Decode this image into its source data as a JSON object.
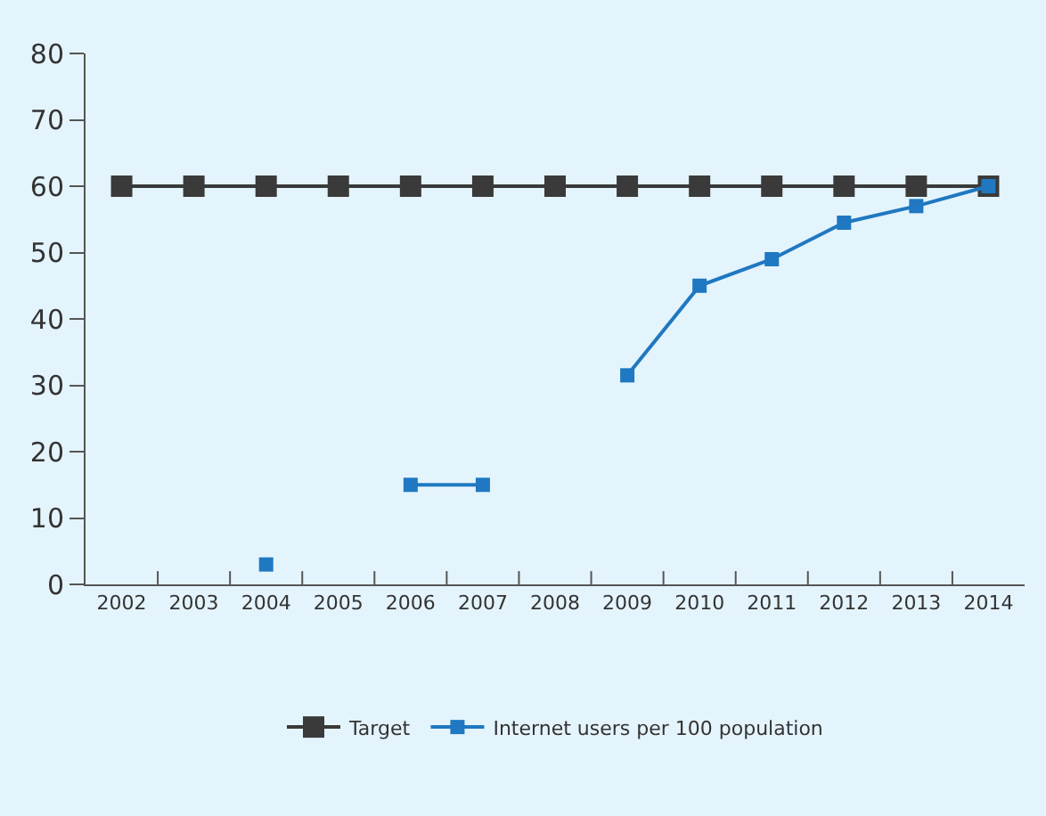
{
  "chart_data": {
    "type": "line",
    "categories": [
      "2002",
      "2003",
      "2004",
      "2005",
      "2006",
      "2007",
      "2008",
      "2009",
      "2010",
      "2011",
      "2012",
      "2013",
      "2014"
    ],
    "series": [
      {
        "name": "Target",
        "color": "#3a3a3a",
        "values": [
          60,
          60,
          60,
          60,
          60,
          60,
          60,
          60,
          60,
          60,
          60,
          60,
          60
        ]
      },
      {
        "name": "Internet users per 100 population",
        "color": "#1f78c1",
        "values": [
          null,
          null,
          3,
          null,
          15,
          15,
          null,
          31.5,
          45,
          49,
          54.5,
          57,
          60
        ]
      }
    ],
    "ylim": [
      0,
      80
    ],
    "yticks": [
      0,
      10,
      20,
      30,
      40,
      50,
      60,
      70,
      80
    ],
    "grid": false,
    "legend": "bottom",
    "marker": "square",
    "line_style": "solid"
  }
}
